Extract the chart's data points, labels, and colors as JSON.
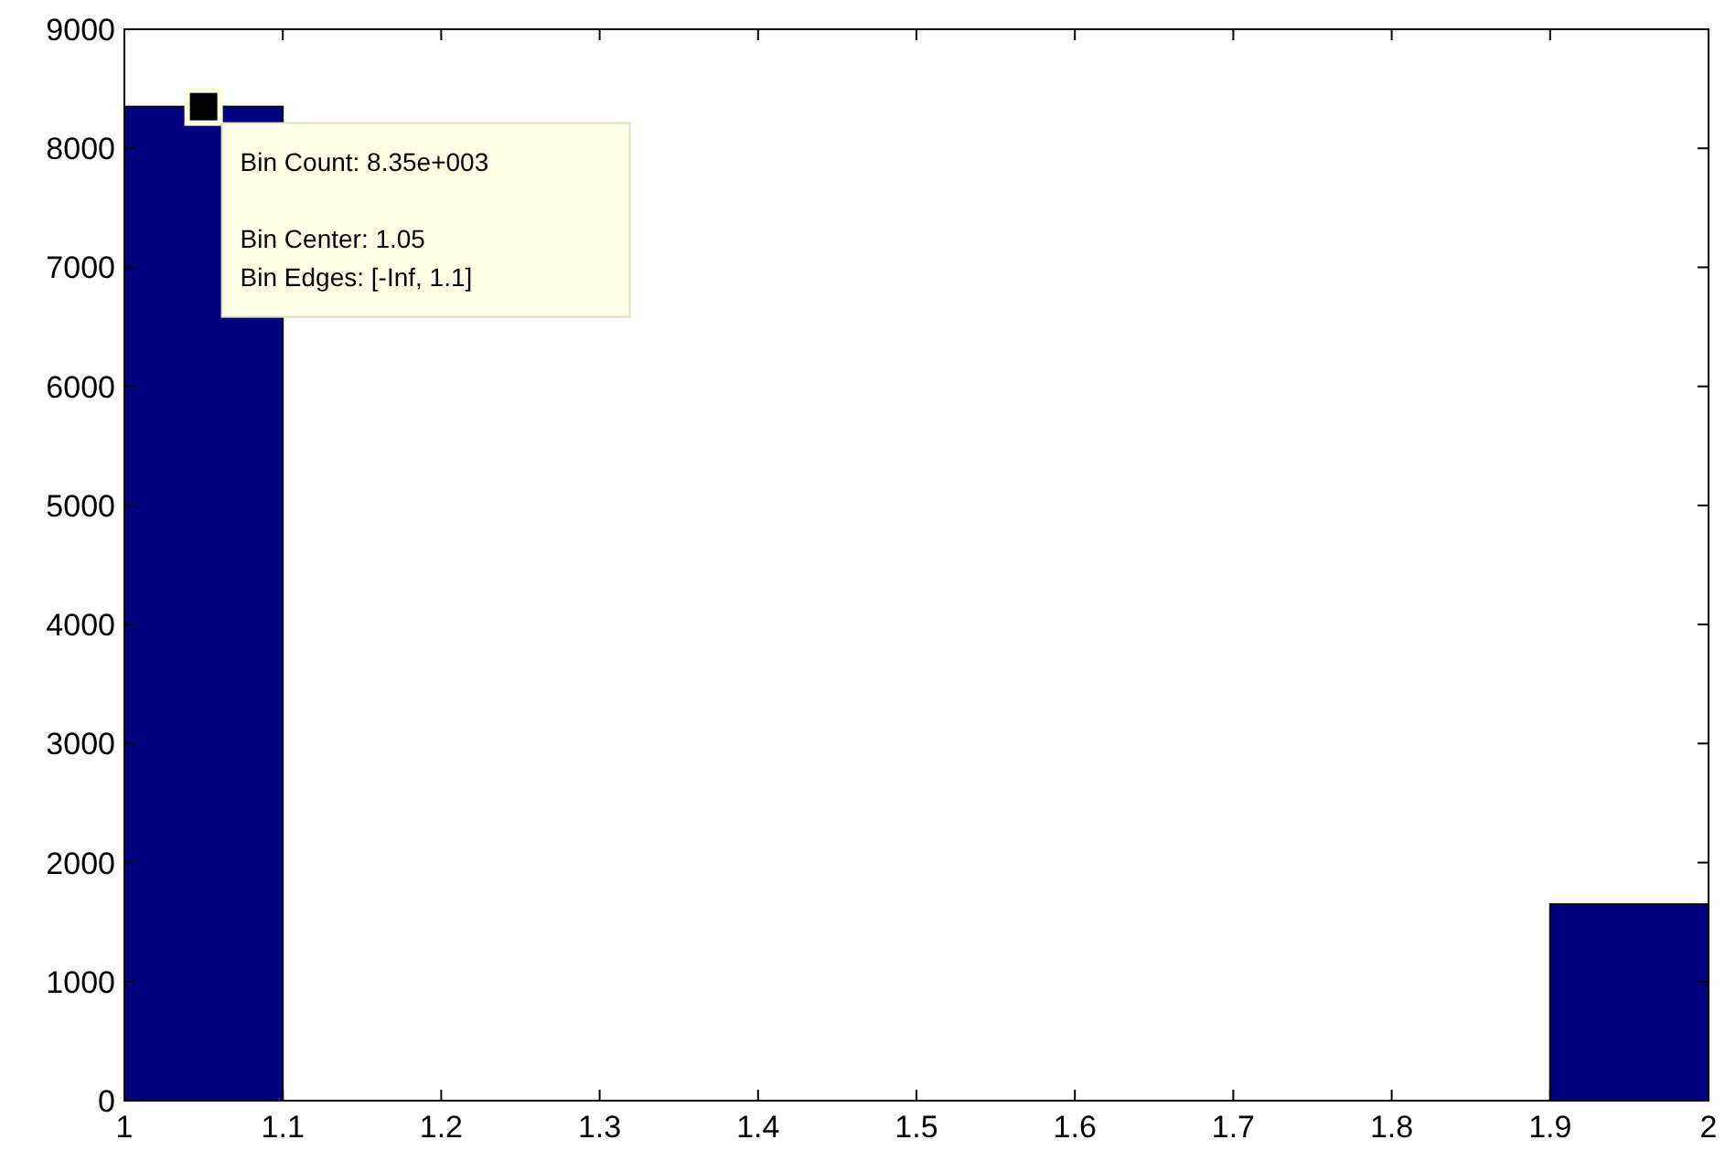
{
  "chart_data": {
    "type": "histogram",
    "bins": [
      1,
      1.1,
      1.2,
      1.3,
      1.4,
      1.5,
      1.6,
      1.7,
      1.8,
      1.9,
      2
    ],
    "values": [
      8350,
      0,
      0,
      0,
      0,
      0,
      0,
      0,
      0,
      1650
    ],
    "color": "#000080",
    "xlim": [
      1,
      2
    ],
    "xticks": [
      1,
      1.1,
      1.2,
      1.3,
      1.4,
      1.5,
      1.6,
      1.7,
      1.8,
      1.9,
      2
    ],
    "ylim": [
      0,
      9000
    ],
    "yticks": [
      0,
      1000,
      2000,
      3000,
      4000,
      5000,
      6000,
      7000,
      8000,
      9000
    ],
    "grid": false,
    "annotations": [
      {
        "text": "Bin Count: 8.35e+003",
        "x": 1.05,
        "y": 8350
      },
      "Bin Center: 1.05",
      "Bin Edges: [-Inf, 1.1]"
    ]
  }
}
